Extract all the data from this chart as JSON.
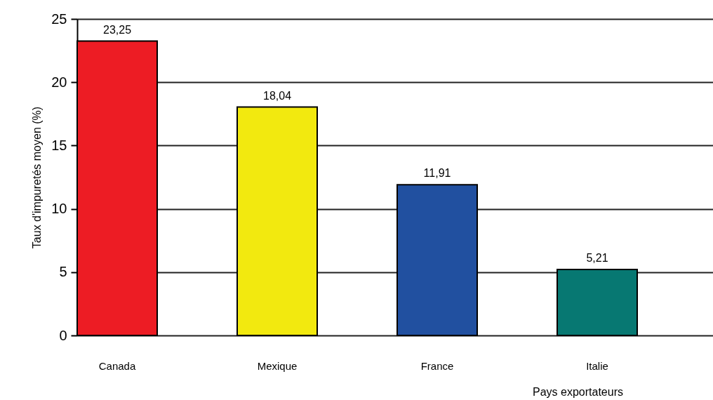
{
  "chart_data": {
    "type": "bar",
    "categories": [
      "Canada",
      "Mexique",
      "France",
      "Italie"
    ],
    "values": [
      23.25,
      18.04,
      11.91,
      5.21
    ],
    "colors": [
      "#ed1c24",
      "#f2e90f",
      "#2150a0",
      "#077872"
    ],
    "value_labels": [
      "23,25",
      "18,04",
      "11,91",
      "5,21"
    ],
    "ylabel": "Taux d'impuretés moyen (%)",
    "xlabel": "Pays exportateurs",
    "ylim": [
      0,
      25
    ],
    "yticks": [
      0,
      5,
      10,
      15,
      20,
      25
    ],
    "grid": "y"
  }
}
